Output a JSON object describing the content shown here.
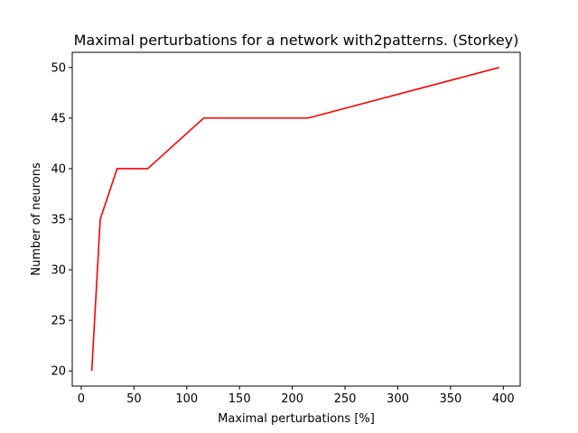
{
  "chart_data": {
    "type": "line",
    "title": "Maximal perturbations for a network with2patterns. (Storkey)",
    "xlabel": "Maximal perturbations [%]",
    "ylabel": "Number of neurons",
    "xlim": [
      -8.5,
      416
    ],
    "ylim": [
      18.5,
      51.5
    ],
    "xticks": [
      0,
      50,
      100,
      150,
      200,
      250,
      300,
      350,
      400
    ],
    "yticks": [
      20,
      25,
      30,
      35,
      40,
      45,
      50
    ],
    "grid": false,
    "series": [
      {
        "color": "#ff0000",
        "x": [
          10,
          18,
          34,
          63,
          116,
          215,
          396
        ],
        "y": [
          20,
          35,
          40,
          40,
          45,
          45,
          50
        ]
      }
    ]
  }
}
